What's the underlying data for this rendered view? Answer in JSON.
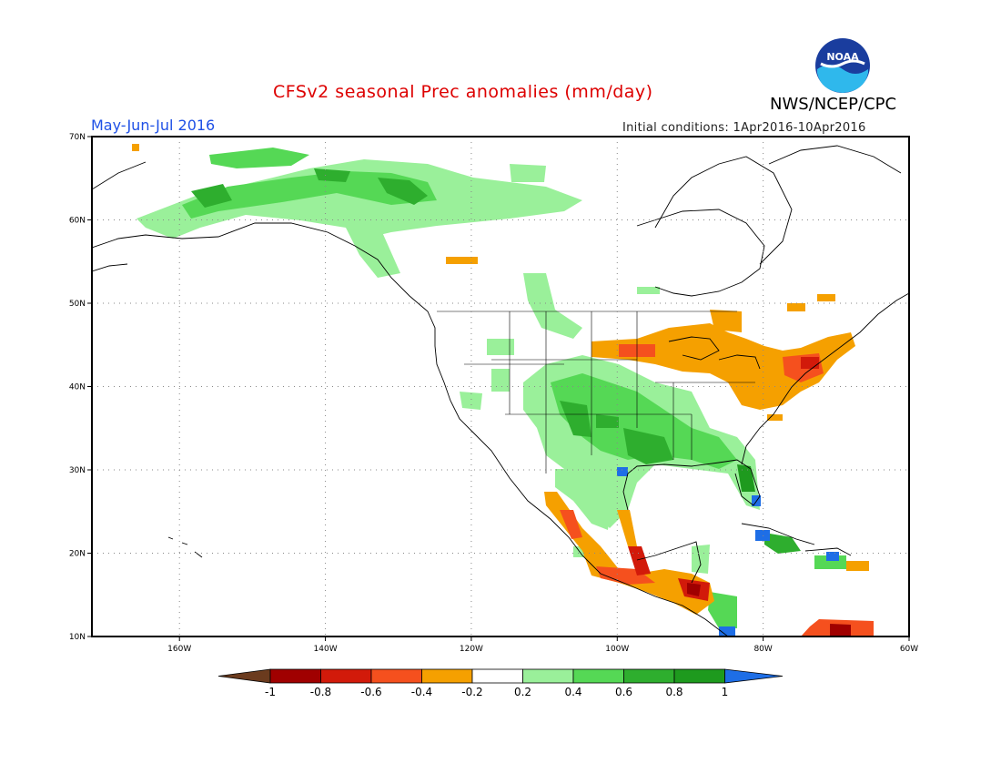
{
  "title": "CFSv2 seasonal Prec anomalies (mm/day)",
  "agency": "NWS/NCEP/CPC",
  "period": "May-Jun-Jul 2016",
  "initial_conditions": "Initial conditions: 1Apr2016-10Apr2016",
  "logo_text": "NOAA",
  "colors": {
    "title": "#dd0000",
    "period": "#1e50e6",
    "cb_-1_low": "#6b3b1e",
    "cb_-1_-0.8": "#a00000",
    "cb_-0.8_-0.6": "#d21a0a",
    "cb_-0.6_-0.4": "#f5501e",
    "cb_-0.4_-0.2": "#f5a000",
    "cb_-0.2_0.2": "#ffffff",
    "cb_0.2_0.4": "#9af09a",
    "cb_0.4_0.6": "#55d855",
    "cb_0.6_0.8": "#2eae2e",
    "cb_0.8_1": "#1e9a1e",
    "cb_high": "#1e6ee6"
  },
  "axes": {
    "lon_labels": [
      "160W",
      "140W",
      "120W",
      "100W",
      "80W",
      "60W"
    ],
    "lat_labels": [
      "70N",
      "60N",
      "50N",
      "40N",
      "30N",
      "20N",
      "10N"
    ],
    "lon_range": [
      -172,
      -60
    ],
    "lat_range": [
      10,
      70
    ]
  },
  "colorbar": {
    "labels": [
      "-1",
      "-0.8",
      "-0.6",
      "-0.4",
      "-0.2",
      "0.2",
      "0.4",
      "0.6",
      "0.8",
      "1"
    ]
  }
}
